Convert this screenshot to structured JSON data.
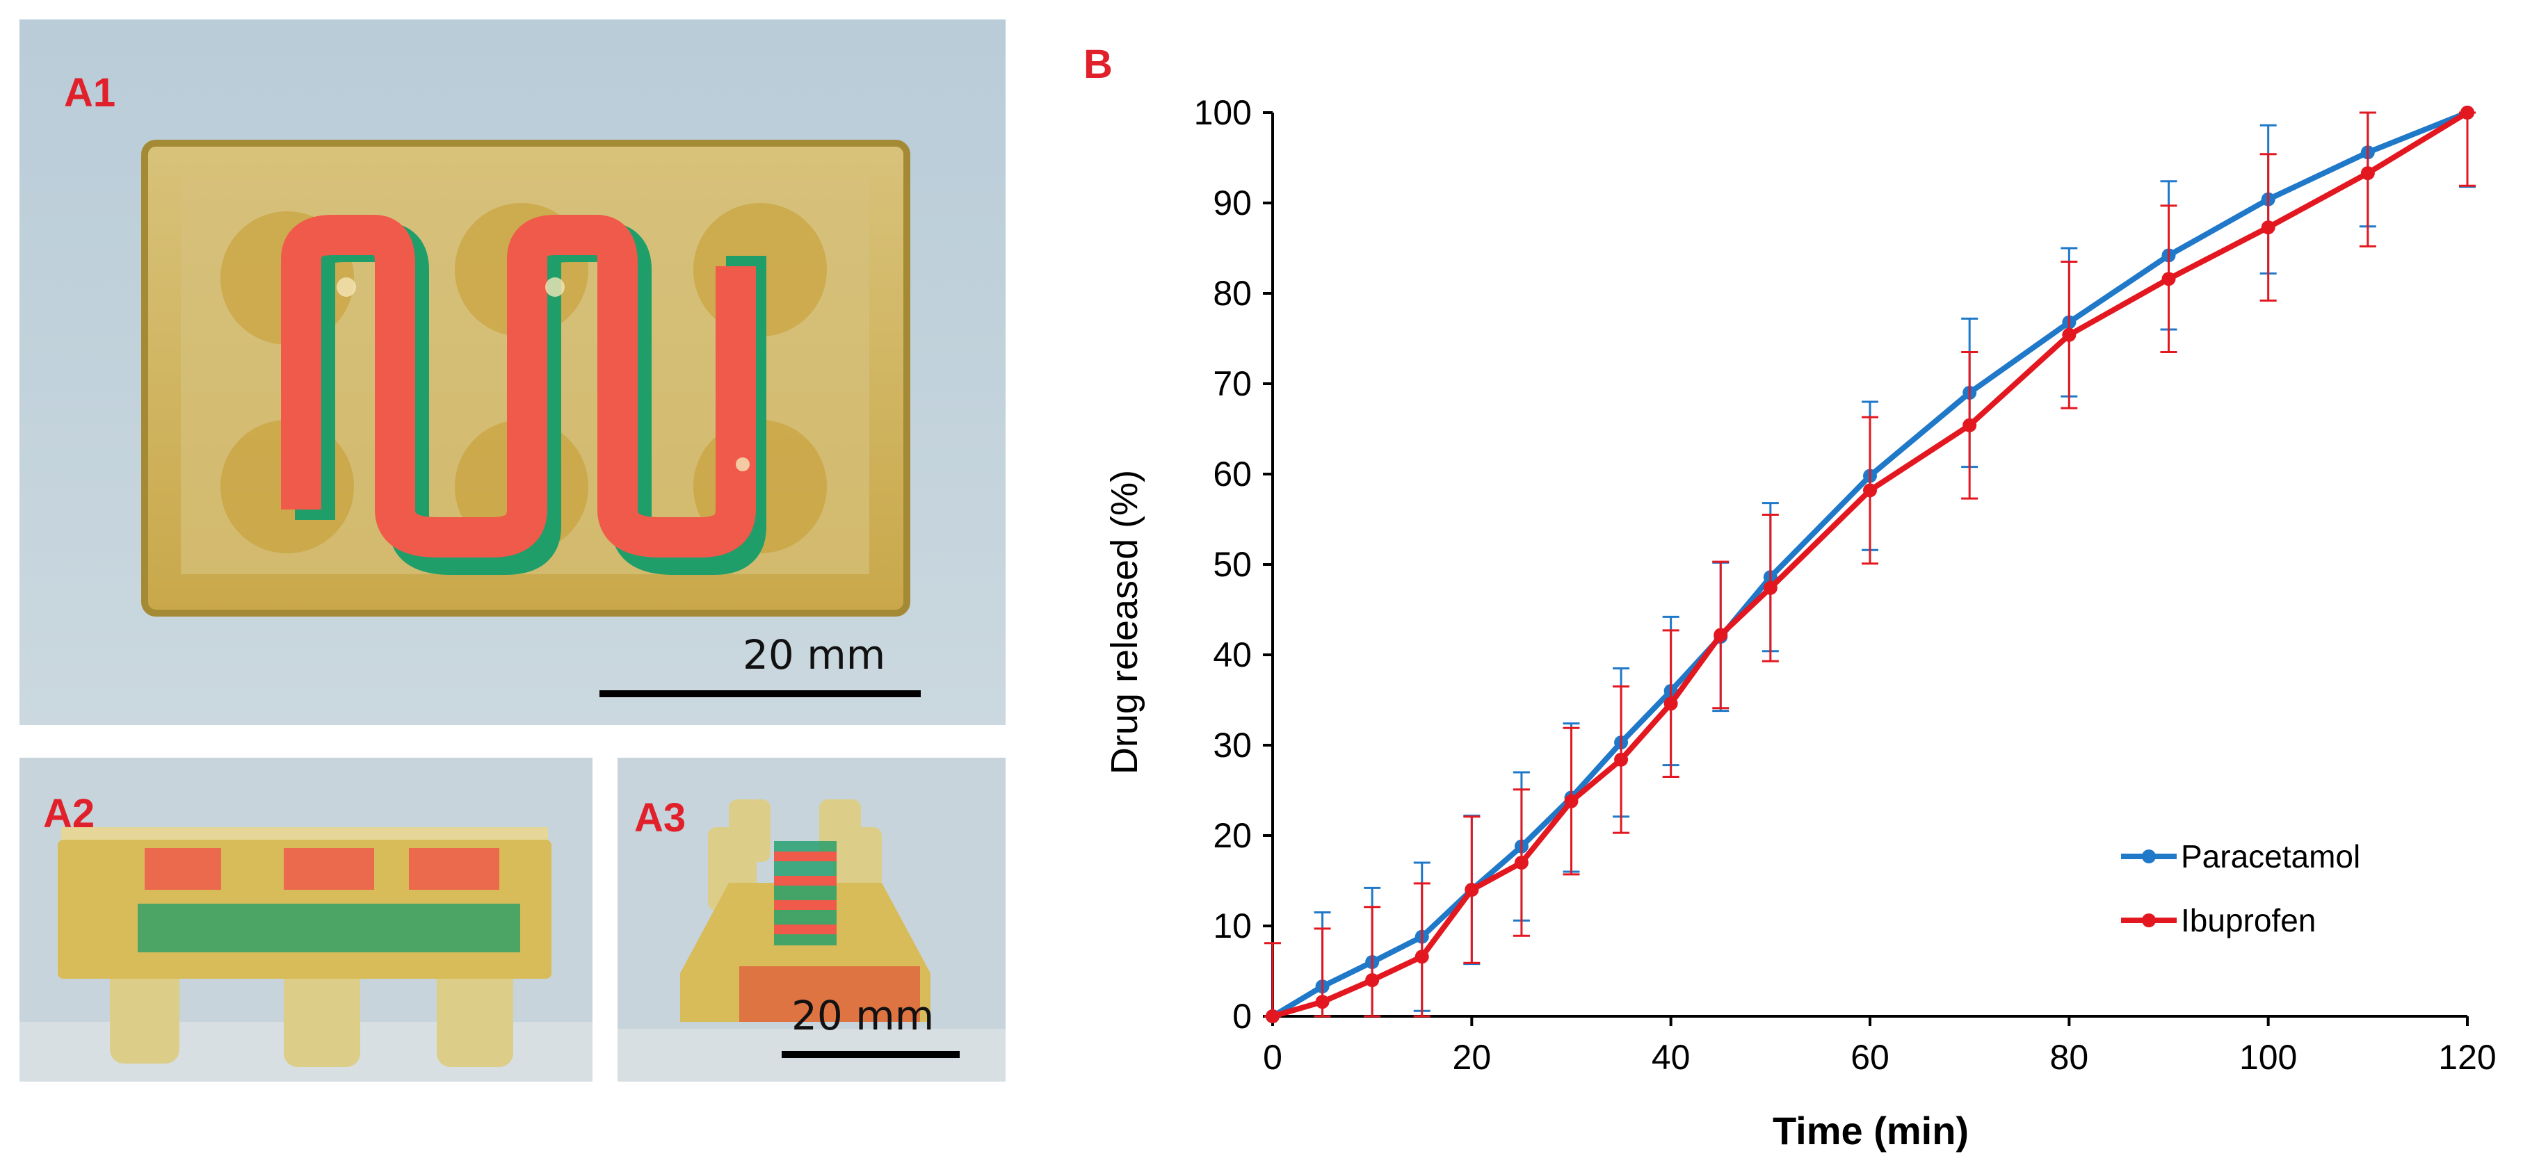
{
  "figure": {
    "panels": {
      "a1": {
        "label": "A1",
        "scale_label": "20 mm"
      },
      "a2": {
        "label": "A2"
      },
      "a3": {
        "label": "A3",
        "scale_label": "20 mm"
      },
      "b": {
        "label": "B"
      }
    },
    "colors": {
      "paracetamol": "#1f78c8",
      "ibuprofen": "#e3171f",
      "label_red": "#e0202a",
      "gel_yellow": "#d8b44a",
      "filament_red": "#ef5a4a",
      "filament_green": "#1f9e6a"
    }
  },
  "chart_data": {
    "type": "line",
    "title": "",
    "xlabel": "Time (min)",
    "ylabel": "Drug released (%)",
    "xlim": [
      0,
      120
    ],
    "ylim": [
      0,
      100
    ],
    "xticks": [
      0,
      20,
      40,
      60,
      80,
      100,
      120
    ],
    "yticks": [
      0,
      10,
      20,
      30,
      40,
      50,
      60,
      70,
      80,
      90,
      100
    ],
    "grid": false,
    "legend_position": "bottom-right",
    "series": [
      {
        "name": "Paracetamol",
        "color": "#1f78c8",
        "x": [
          0,
          5,
          10,
          15,
          20,
          25,
          30,
          35,
          40,
          45,
          50,
          60,
          70,
          80,
          90,
          100,
          110,
          120
        ],
        "y": [
          0,
          3.3,
          6.0,
          8.8,
          14.0,
          18.8,
          24.2,
          30.3,
          36.0,
          42.0,
          48.6,
          59.8,
          69.0,
          76.8,
          84.2,
          90.4,
          95.6,
          100
        ],
        "err": [
          0,
          8.2,
          8.2,
          8.2,
          8.2,
          8.2,
          8.2,
          8.2,
          8.2,
          8.2,
          8.2,
          8.2,
          8.2,
          8.2,
          8.2,
          8.2,
          8.2,
          8.2
        ]
      },
      {
        "name": "Ibuprofen",
        "color": "#e3171f",
        "x": [
          0,
          5,
          10,
          15,
          20,
          25,
          30,
          35,
          40,
          45,
          50,
          60,
          70,
          80,
          90,
          100,
          110,
          120
        ],
        "y": [
          0,
          1.6,
          4.0,
          6.6,
          14.0,
          17.0,
          23.8,
          28.4,
          34.6,
          42.2,
          47.4,
          58.2,
          65.4,
          75.4,
          81.6,
          87.3,
          93.3,
          100
        ],
        "err": [
          8.1,
          8.1,
          8.1,
          8.1,
          8.1,
          8.1,
          8.1,
          8.1,
          8.1,
          8.1,
          8.1,
          8.1,
          8.1,
          8.1,
          8.1,
          8.1,
          8.1,
          8.1
        ]
      }
    ]
  }
}
